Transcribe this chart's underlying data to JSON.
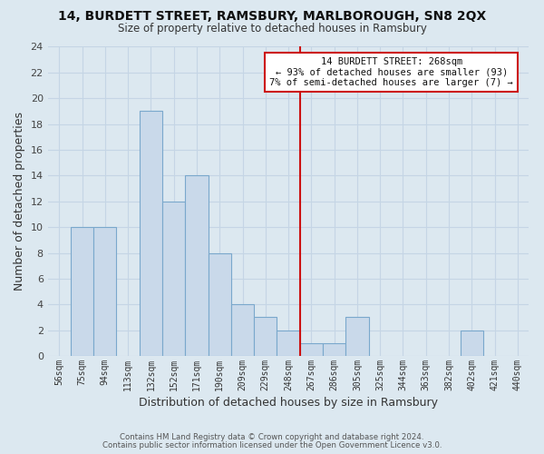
{
  "title": "14, BURDETT STREET, RAMSBURY, MARLBOROUGH, SN8 2QX",
  "subtitle": "Size of property relative to detached houses in Ramsbury",
  "xlabel": "Distribution of detached houses by size in Ramsbury",
  "ylabel": "Number of detached properties",
  "bin_labels": [
    "56sqm",
    "75sqm",
    "94sqm",
    "113sqm",
    "132sqm",
    "152sqm",
    "171sqm",
    "190sqm",
    "209sqm",
    "229sqm",
    "248sqm",
    "267sqm",
    "286sqm",
    "305sqm",
    "325sqm",
    "344sqm",
    "363sqm",
    "382sqm",
    "402sqm",
    "421sqm",
    "440sqm"
  ],
  "bar_heights": [
    0,
    10,
    10,
    0,
    19,
    12,
    14,
    8,
    4,
    3,
    2,
    1,
    1,
    3,
    0,
    0,
    0,
    0,
    2,
    0,
    0
  ],
  "bar_color": "#c9d9ea",
  "bar_edge_color": "#7aa8cc",
  "grid_color": "#c5d5e5",
  "bg_color": "#dce8f0",
  "plot_bg_color": "#dce8f0",
  "vline_bin": 11,
  "vline_color": "#cc1111",
  "annotation_title": "14 BURDETT STREET: 268sqm",
  "annotation_line1": "← 93% of detached houses are smaller (93)",
  "annotation_line2": "7% of semi-detached houses are larger (7) →",
  "annotation_box_facecolor": "#ffffff",
  "annotation_box_edgecolor": "#cc1111",
  "ylim": [
    0,
    24
  ],
  "yticks": [
    0,
    2,
    4,
    6,
    8,
    10,
    12,
    14,
    16,
    18,
    20,
    22,
    24
  ],
  "footer1": "Contains HM Land Registry data © Crown copyright and database right 2024.",
  "footer2": "Contains public sector information licensed under the Open Government Licence v3.0."
}
